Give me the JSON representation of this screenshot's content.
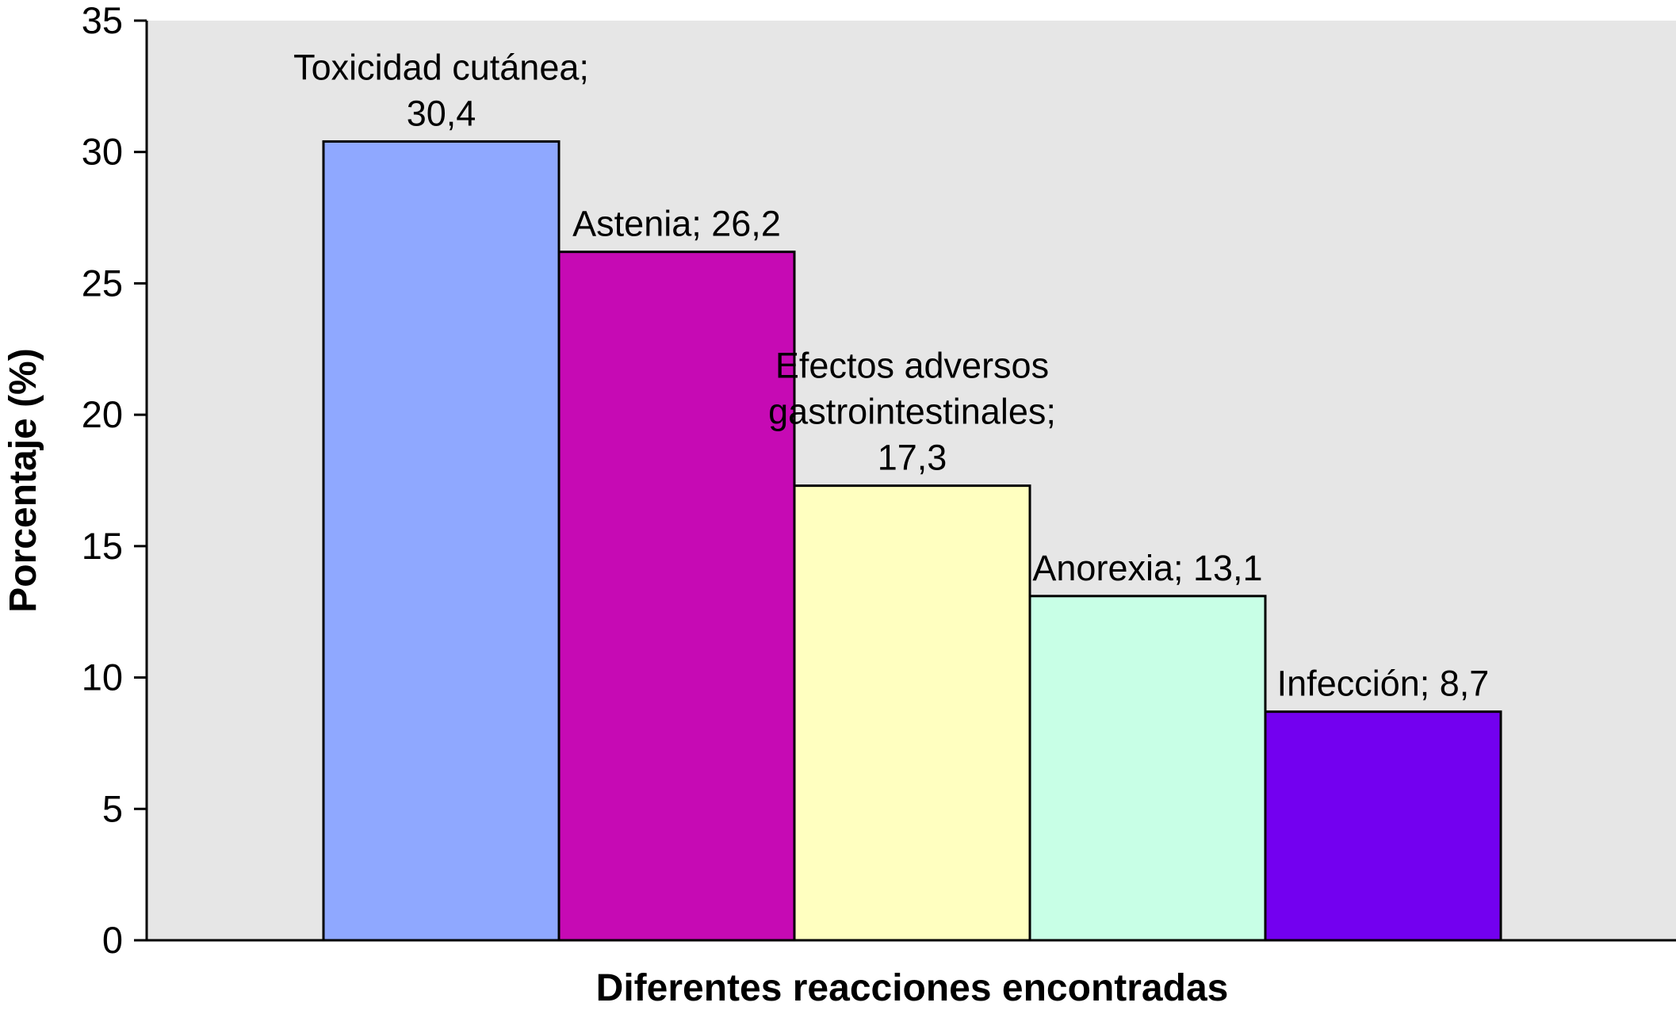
{
  "chart_data": {
    "type": "bar",
    "title": "",
    "xlabel": "Diferentes reacciones encontradas",
    "ylabel": "Porcentaje (%)",
    "ylim": [
      0,
      35
    ],
    "yticks": [
      0,
      5,
      10,
      15,
      20,
      25,
      30,
      35
    ],
    "grid": false,
    "background_color": "#e6e6e6",
    "bars": [
      {
        "category": "Toxicidad cutánea",
        "value": 30.4,
        "label_lines": [
          "Toxicidad cutánea;",
          "30,4"
        ],
        "color": "#8fa8ff"
      },
      {
        "category": "Astenia",
        "value": 26.2,
        "label_lines": [
          "Astenia; 26,2"
        ],
        "color": "#c60ab4"
      },
      {
        "category": "Efectos adversos gastrointestinales",
        "value": 17.3,
        "label_lines": [
          "Efectos adversos",
          "gastrointestinales;",
          "17,3"
        ],
        "color": "#ffffc0"
      },
      {
        "category": "Anorexia",
        "value": 13.1,
        "label_lines": [
          "Anorexia; 13,1"
        ],
        "color": "#c8ffe6"
      },
      {
        "category": "Infección",
        "value": 8.7,
        "label_lines": [
          "Infección; 8,7"
        ],
        "color": "#7300f0"
      }
    ]
  }
}
